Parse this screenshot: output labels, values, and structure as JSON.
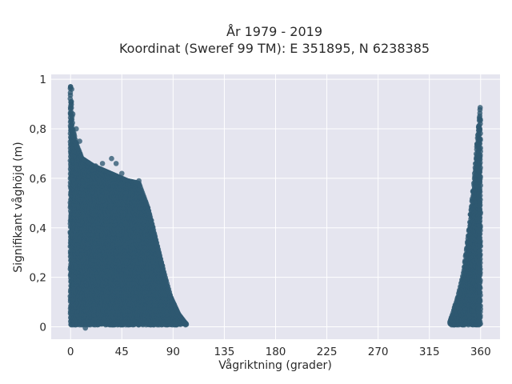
{
  "chart_data": {
    "type": "scatter",
    "title_line1": "År 1979 - 2019",
    "title_line2": "Koordinat (Sweref 99 TM): E 351895, N 6238385",
    "xlabel": "Vågriktning (grader)",
    "ylabel": "Signifikant våghöjd (m)",
    "xlim": [
      -17,
      377
    ],
    "ylim": [
      -0.05,
      1.02
    ],
    "xticks": [
      0,
      45,
      90,
      135,
      180,
      225,
      270,
      315,
      360
    ],
    "xtick_labels": [
      "0",
      "45",
      "90",
      "135",
      "180",
      "225",
      "270",
      "315",
      "360"
    ],
    "yticks": [
      0,
      0.2,
      0.4,
      0.6,
      0.8,
      1
    ],
    "ytick_labels": [
      "0",
      "0,2",
      "0,4",
      "0,6",
      "0,8",
      "1"
    ],
    "grid": true,
    "marker_color": "#2e5871",
    "plot_background": "#e5e5ef",
    "envelope_main": [
      [
        0,
        0.97
      ],
      [
        2,
        0.8
      ],
      [
        5,
        0.74
      ],
      [
        10,
        0.68
      ],
      [
        20,
        0.65
      ],
      [
        30,
        0.63
      ],
      [
        40,
        0.61
      ],
      [
        50,
        0.59
      ],
      [
        60,
        0.58
      ],
      [
        68,
        0.48
      ],
      [
        75,
        0.35
      ],
      [
        82,
        0.22
      ],
      [
        88,
        0.12
      ],
      [
        95,
        0.05
      ],
      [
        100,
        0.02
      ],
      [
        102,
        0.01
      ]
    ],
    "envelope_north": [
      [
        333,
        0.02
      ],
      [
        336,
        0.06
      ],
      [
        340,
        0.12
      ],
      [
        345,
        0.22
      ],
      [
        350,
        0.4
      ],
      [
        354,
        0.58
      ],
      [
        357,
        0.75
      ],
      [
        359,
        0.85
      ],
      [
        360,
        0.91
      ]
    ],
    "outliers": [
      [
        0,
        0.97
      ],
      [
        1,
        0.96
      ],
      [
        0,
        0.88
      ],
      [
        2,
        0.86
      ],
      [
        5,
        0.8
      ],
      [
        8,
        0.75
      ],
      [
        36,
        0.68
      ],
      [
        40,
        0.66
      ],
      [
        45,
        0.62
      ],
      [
        28,
        0.66
      ],
      [
        22,
        0.65
      ],
      [
        60,
        0.59
      ],
      [
        13,
        -0.005
      ]
    ]
  }
}
